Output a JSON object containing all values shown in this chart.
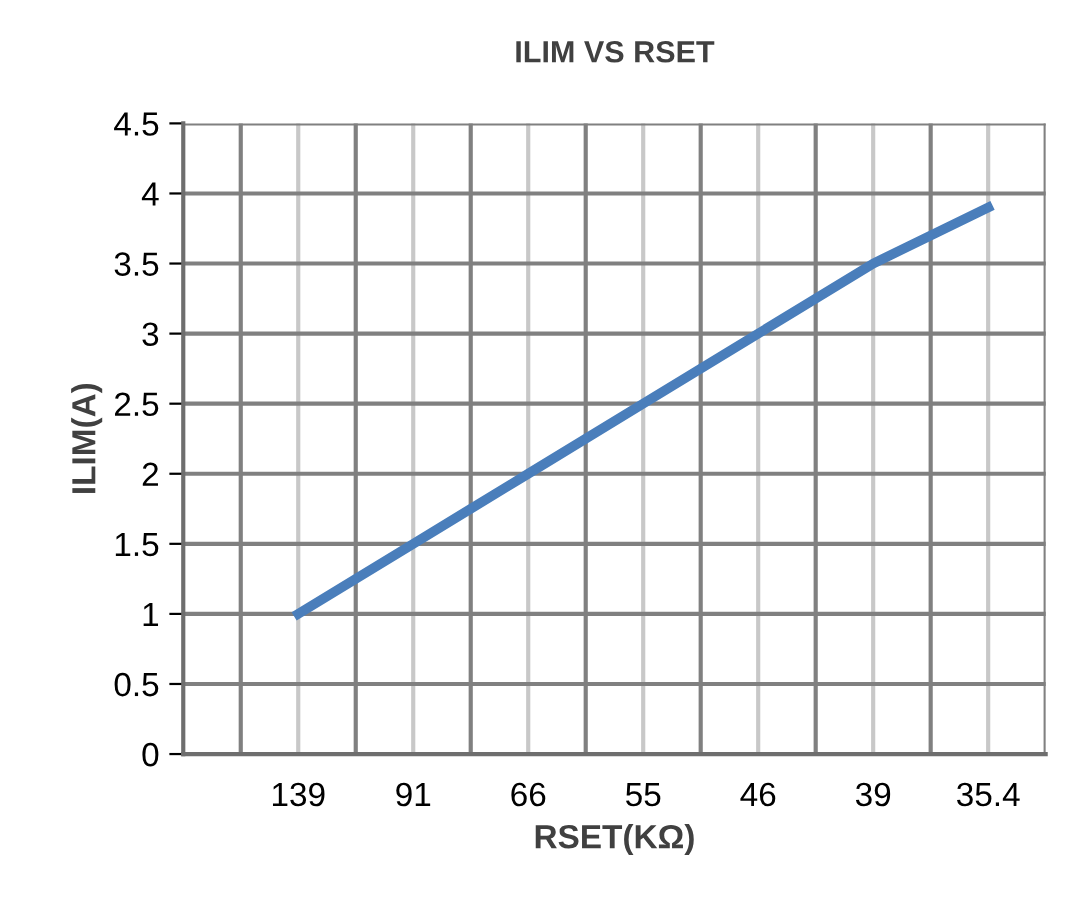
{
  "chart_data": {
    "type": "line",
    "title": "ILIM VS RSET",
    "xlabel": "RSET(KΩ)",
    "ylabel": "ILIM(A)",
    "categories": [
      "139",
      "91",
      "66",
      "55",
      "46",
      "39",
      "35.4"
    ],
    "series": [
      {
        "color": "#4a7ebb",
        "values": [
          1,
          1.5,
          2,
          2.5,
          3,
          3.5,
          3.9
        ]
      }
    ],
    "ylim": [
      0,
      4.5
    ],
    "yticks": [
      0,
      0.5,
      1,
      1.5,
      2,
      2.5,
      3,
      3.5,
      4,
      4.5
    ],
    "grid": true,
    "marker": "none",
    "line_style": "solid",
    "legend": false
  }
}
